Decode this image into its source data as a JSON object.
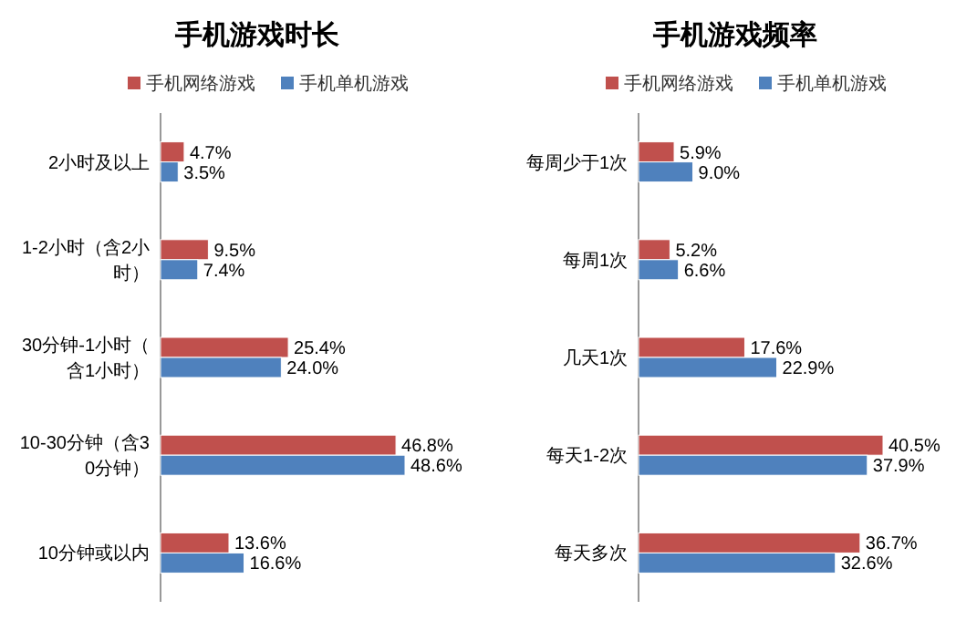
{
  "chart_data": [
    {
      "type": "bar",
      "orientation": "horizontal",
      "title": "手机游戏时长",
      "legend": "top",
      "categories": [
        "2小时及以上",
        "1-2小时（含2小时）",
        "30分钟-1小时（含1小时）",
        "10-30分钟（含30分钟）",
        "10分钟或以内"
      ],
      "series": [
        {
          "name": "手机网络游戏",
          "color": "#c0504d",
          "values": [
            4.7,
            9.5,
            25.4,
            46.8,
            13.6
          ],
          "value_labels": [
            "4.7%",
            "9.5%",
            "25.4%",
            "46.8%",
            "13.6%"
          ]
        },
        {
          "name": "手机单机游戏",
          "color": "#4f81bd",
          "values": [
            3.5,
            7.4,
            24.0,
            48.6,
            16.6
          ],
          "value_labels": [
            "3.5%",
            "7.4%",
            "24.0%",
            "48.6%",
            "16.6%"
          ]
        }
      ]
    },
    {
      "type": "bar",
      "orientation": "horizontal",
      "title": "手机游戏频率",
      "legend": "top",
      "categories": [
        "每周少于1次",
        "每周1次",
        "几天1次",
        "每天1-2次",
        "每天多次"
      ],
      "series": [
        {
          "name": "手机网络游戏",
          "color": "#c0504d",
          "values": [
            5.9,
            5.2,
            17.6,
            40.5,
            36.7
          ],
          "value_labels": [
            "5.9%",
            "5.2%",
            "17.6%",
            "40.5%",
            "36.7%"
          ]
        },
        {
          "name": "手机单机游戏",
          "color": "#4f81bd",
          "values": [
            9.0,
            6.6,
            22.9,
            37.9,
            32.6
          ],
          "value_labels": [
            "9.0%",
            "6.6%",
            "22.9%",
            "37.9%",
            "32.6%"
          ]
        }
      ]
    }
  ]
}
